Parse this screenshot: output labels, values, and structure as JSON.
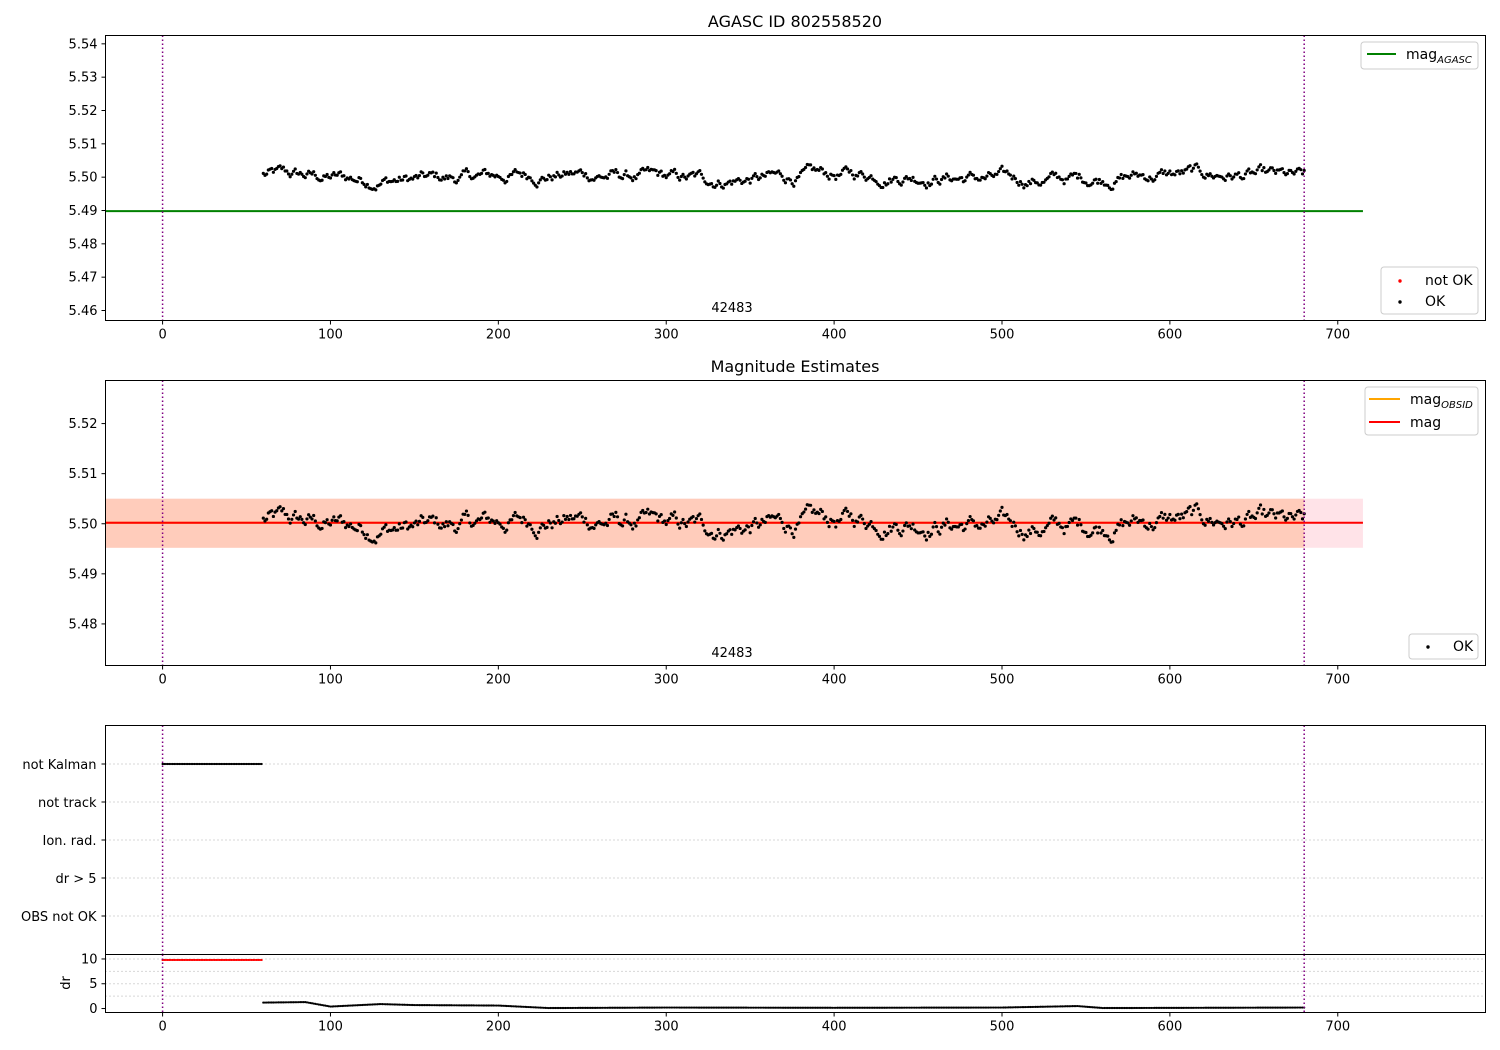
{
  "figure": {
    "background": "#ffffff",
    "colors": {
      "ok": "#000000",
      "not_ok": "#ff0000",
      "agasc_line": "#008000",
      "obsid_line": "#ffa500",
      "mag_line": "#ff0000",
      "obs_band": "#ffb084",
      "overall_band": "#ffc0cb",
      "vline": "#800080",
      "grid": "#b0b0b0"
    }
  },
  "chart_data": [
    {
      "id": "agasc",
      "type": "scatter",
      "title": "AGASC ID 802558520",
      "xlim": [
        -34,
        788
      ],
      "ylim": [
        5.457,
        5.5425
      ],
      "xticks": [
        0,
        100,
        200,
        300,
        400,
        500,
        600,
        700
      ],
      "yticks": [
        5.46,
        5.47,
        5.48,
        5.49,
        5.5,
        5.51,
        5.52,
        5.53,
        5.54
      ],
      "ytick_labels": [
        "5.46",
        "5.47",
        "5.48",
        "5.49",
        "5.50",
        "5.51",
        "5.52",
        "5.53",
        "5.54"
      ],
      "obsid_label": "42483",
      "obsid_label_x": 340,
      "vlines": [
        0,
        680
      ],
      "hlines": [
        {
          "series": "mag_AGASC",
          "y": 5.4898,
          "x": [
            -34,
            715
          ],
          "color": "#008000"
        }
      ],
      "series": [
        {
          "name": "not OK",
          "values": []
        },
        {
          "name": "OK",
          "x_range": [
            60,
            680
          ],
          "mean": 5.5,
          "noise": 0.0042
        }
      ],
      "legend_upper": {
        "position": "upper right",
        "entries": [
          {
            "label": "mag",
            "sub": "AGASC",
            "color": "#008000"
          }
        ]
      },
      "legend_lower": {
        "position": "lower right",
        "entries": [
          {
            "label": "not OK",
            "color": "#ff0000"
          },
          {
            "label": "OK",
            "color": "#000000"
          }
        ]
      }
    },
    {
      "id": "estimates",
      "type": "scatter",
      "title": "Magnitude Estimates",
      "xlim": [
        -34,
        788
      ],
      "ylim": [
        5.4717,
        5.5286
      ],
      "xticks": [
        0,
        100,
        200,
        300,
        400,
        500,
        600,
        700
      ],
      "yticks": [
        5.48,
        5.49,
        5.5,
        5.51,
        5.52
      ],
      "ytick_labels": [
        "5.48",
        "5.49",
        "5.50",
        "5.51",
        "5.52"
      ],
      "obsid_label": "42483",
      "obsid_label_x": 340,
      "vlines": [
        0,
        680
      ],
      "bands": [
        {
          "name": "overall",
          "y": [
            5.4952,
            5.505
          ],
          "x": [
            -34,
            715
          ],
          "color": "#ffc0cb"
        },
        {
          "name": "obsid",
          "y": [
            5.4952,
            5.505
          ],
          "x": [
            -34,
            680
          ],
          "color": "#ffb084"
        }
      ],
      "hlines": [
        {
          "series": "mag_OBSID",
          "y": 5.5002,
          "x": [
            -34,
            680
          ],
          "color": "#ffa500"
        },
        {
          "series": "mag",
          "y": 5.5002,
          "x": [
            -34,
            715
          ],
          "color": "#ff0000"
        }
      ],
      "series": [
        {
          "name": "OK",
          "x_range": [
            60,
            680
          ],
          "mean": 5.5,
          "noise": 0.0042
        }
      ],
      "legend_upper": {
        "position": "upper right",
        "entries": [
          {
            "label": "mag",
            "sub": "OBSID",
            "color": "#ffa500"
          },
          {
            "label": "mag",
            "sub": "",
            "color": "#ff0000"
          }
        ]
      },
      "legend_lower": {
        "position": "lower right",
        "entries": [
          {
            "label": "OK",
            "color": "#000000"
          }
        ]
      }
    },
    {
      "id": "flags",
      "type": "scatter",
      "xlim": [
        -34,
        788
      ],
      "vlines": [
        0,
        680
      ],
      "categories": [
        "not Kalman",
        "not track",
        "Ion. rad.",
        "dr > 5",
        "OBS not OK"
      ],
      "flag_ranges": [
        {
          "category": "not Kalman",
          "x_range": [
            0,
            59
          ],
          "color": "#000000"
        }
      ]
    },
    {
      "id": "dr",
      "type": "scatter",
      "ylabel": "dr",
      "xlim": [
        -34,
        788
      ],
      "ylim": [
        -0.8,
        10.9
      ],
      "xticks": [
        0,
        100,
        200,
        300,
        400,
        500,
        600,
        700
      ],
      "yticks": [
        0,
        5,
        10
      ],
      "ytick_labels": [
        "0",
        "5",
        "10"
      ],
      "vlines": [
        0,
        680
      ],
      "series": [
        {
          "name": "dr > 5",
          "x_range": [
            0,
            59
          ],
          "value": 9.8,
          "color": "#ff0000"
        },
        {
          "name": "dr",
          "x_range": [
            60,
            680
          ],
          "color": "#000000",
          "profile": [
            [
              60,
              1.2
            ],
            [
              85,
              1.3
            ],
            [
              100,
              0.4
            ],
            [
              130,
              0.9
            ],
            [
              150,
              0.7
            ],
            [
              200,
              0.6
            ],
            [
              230,
              0.1
            ],
            [
              300,
              0.2
            ],
            [
              400,
              0.15
            ],
            [
              500,
              0.2
            ],
            [
              545,
              0.5
            ],
            [
              560,
              0.1
            ],
            [
              680,
              0.2
            ]
          ]
        }
      ]
    }
  ]
}
